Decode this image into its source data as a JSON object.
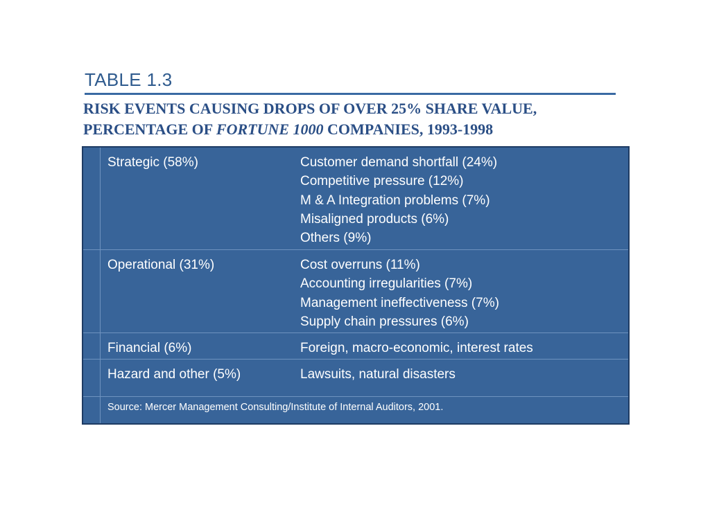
{
  "heading": {
    "table_label": "TABLE 1.3",
    "title_line1_a": "RISK EVENTS CAUSING DROPS OF OVER 25",
    "title_line1_b": "% SHARE VALUE,",
    "title_line2_a": "PERCENTAGE OF ",
    "title_line2_italic": "FORTUNE 1000",
    "title_line2_b": " COMPANIES, 1993-1998"
  },
  "table": {
    "rows": [
      {
        "category": "Strategic (58%)",
        "items": [
          "Customer demand shortfall (24%)",
          "Competitive pressure (12%)",
          "M & A Integration problems (7%)",
          "Misaligned products (6%)",
          "Others (9%)"
        ]
      },
      {
        "category": "Operational (31%)",
        "items": [
          "Cost overruns (11%)",
          "Accounting irregularities (7%)",
          "Management ineffectiveness (7%)",
          "Supply chain pressures (6%)"
        ]
      },
      {
        "category": "Financial (6%)",
        "items": [
          "Foreign, macro-economic, interest rates"
        ]
      },
      {
        "category": "Hazard and other (5%)",
        "items": [
          "Lawsuits, natural disasters"
        ]
      }
    ],
    "source": "Source: Mercer Management Consulting/Institute of Internal Auditors, 2001."
  },
  "colors": {
    "table_fill": "#386499",
    "table_border": "#1e3b63",
    "heading_blue": "#2f5b8e",
    "title_blue": "#2b4f86"
  }
}
